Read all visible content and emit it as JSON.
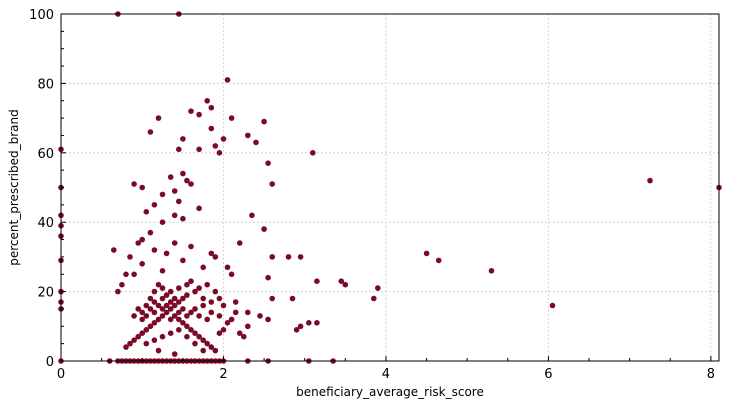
{
  "chart_data": {
    "type": "scatter",
    "title": "",
    "xlabel": "beneficiary_average_risk_score",
    "ylabel": "percent_prescribed_brand",
    "xlim": [
      0,
      8.1
    ],
    "ylim": [
      0,
      100
    ],
    "x_ticks": [
      "0",
      "2",
      "4",
      "6",
      "8"
    ],
    "y_ticks": [
      "0",
      "20",
      "40",
      "60",
      "80",
      "100"
    ],
    "x_tick_values": [
      0,
      2,
      4,
      6,
      8
    ],
    "y_tick_values": [
      0,
      20,
      40,
      60,
      80,
      100
    ],
    "grid": true,
    "legend": "none",
    "point_color": "#7b0a26",
    "points": [
      [
        0.7,
        100
      ],
      [
        1.45,
        100
      ],
      [
        2.05,
        81
      ],
      [
        1.8,
        75
      ],
      [
        1.85,
        73
      ],
      [
        1.6,
        72
      ],
      [
        1.7,
        71
      ],
      [
        1.2,
        70
      ],
      [
        2.1,
        70
      ],
      [
        2.5,
        69
      ],
      [
        1.85,
        67
      ],
      [
        1.1,
        66
      ],
      [
        1.5,
        64
      ],
      [
        2.3,
        65
      ],
      [
        2.0,
        64
      ],
      [
        2.4,
        63
      ],
      [
        1.9,
        62
      ],
      [
        1.7,
        61
      ],
      [
        1.45,
        61
      ],
      [
        1.95,
        60
      ],
      [
        3.1,
        60
      ],
      [
        2.55,
        57
      ],
      [
        1.5,
        54
      ],
      [
        1.35,
        53
      ],
      [
        1.55,
        52
      ],
      [
        1.6,
        51
      ],
      [
        0.9,
        51
      ],
      [
        2.6,
        51
      ],
      [
        1.0,
        50
      ],
      [
        1.4,
        49
      ],
      [
        1.25,
        48
      ],
      [
        1.45,
        46
      ],
      [
        1.15,
        45
      ],
      [
        1.7,
        44
      ],
      [
        1.05,
        43
      ],
      [
        1.4,
        42
      ],
      [
        2.35,
        42
      ],
      [
        1.5,
        41
      ],
      [
        1.25,
        40
      ],
      [
        2.5,
        38
      ],
      [
        1.1,
        37
      ],
      [
        1.0,
        35
      ],
      [
        0.95,
        34
      ],
      [
        1.4,
        34
      ],
      [
        2.2,
        34
      ],
      [
        1.6,
        33
      ],
      [
        0.65,
        32
      ],
      [
        1.15,
        32
      ],
      [
        1.3,
        31
      ],
      [
        1.85,
        31
      ],
      [
        1.9,
        30
      ],
      [
        2.8,
        30
      ],
      [
        2.95,
        30
      ],
      [
        2.6,
        30
      ],
      [
        0.85,
        30
      ],
      [
        4.5,
        31
      ],
      [
        4.65,
        29
      ],
      [
        1.5,
        29
      ],
      [
        1.0,
        28
      ],
      [
        1.75,
        27
      ],
      [
        2.05,
        27
      ],
      [
        1.25,
        26
      ],
      [
        5.3,
        26
      ],
      [
        0.8,
        25
      ],
      [
        0.9,
        25
      ],
      [
        2.1,
        25
      ],
      [
        2.55,
        24
      ],
      [
        3.45,
        23
      ],
      [
        3.5,
        22
      ],
      [
        3.15,
        23
      ],
      [
        3.9,
        21
      ],
      [
        3.85,
        18
      ],
      [
        2.85,
        18
      ],
      [
        2.6,
        18
      ],
      [
        6.05,
        16
      ],
      [
        7.25,
        52
      ],
      [
        8.1,
        50
      ],
      [
        3.15,
        11
      ],
      [
        3.05,
        11
      ],
      [
        2.9,
        9
      ],
      [
        2.95,
        10
      ],
      [
        2.55,
        12
      ],
      [
        2.45,
        13
      ],
      [
        2.3,
        14
      ],
      [
        2.0,
        16
      ],
      [
        2.15,
        17
      ],
      [
        1.95,
        18
      ],
      [
        1.9,
        20
      ],
      [
        1.8,
        22
      ],
      [
        1.7,
        21
      ],
      [
        1.6,
        23
      ],
      [
        1.55,
        19
      ],
      [
        1.5,
        18
      ],
      [
        1.45,
        17
      ],
      [
        1.4,
        16
      ],
      [
        1.35,
        15
      ],
      [
        1.3,
        14
      ],
      [
        1.25,
        13
      ],
      [
        1.2,
        12
      ],
      [
        1.15,
        11
      ],
      [
        1.1,
        10
      ],
      [
        1.05,
        9
      ],
      [
        1.0,
        8
      ],
      [
        0.95,
        7
      ],
      [
        0.9,
        6
      ],
      [
        0.85,
        5
      ],
      [
        0.8,
        4
      ],
      [
        1.0,
        14
      ],
      [
        1.05,
        16
      ],
      [
        1.1,
        18
      ],
      [
        1.15,
        20
      ],
      [
        1.2,
        22
      ],
      [
        1.25,
        21
      ],
      [
        1.3,
        19
      ],
      [
        1.35,
        17
      ],
      [
        1.4,
        13
      ],
      [
        1.45,
        12
      ],
      [
        1.5,
        11
      ],
      [
        1.55,
        10
      ],
      [
        1.6,
        9
      ],
      [
        1.65,
        8
      ],
      [
        1.7,
        7
      ],
      [
        1.75,
        6
      ],
      [
        1.8,
        5
      ],
      [
        1.85,
        4
      ],
      [
        1.9,
        3
      ],
      [
        1.95,
        8
      ],
      [
        2.0,
        9
      ],
      [
        2.05,
        11
      ],
      [
        2.1,
        12
      ],
      [
        2.15,
        14
      ],
      [
        1.2,
        16
      ],
      [
        1.3,
        16
      ],
      [
        1.4,
        18
      ],
      [
        1.5,
        15
      ],
      [
        1.6,
        14
      ],
      [
        1.7,
        13
      ],
      [
        1.8,
        12
      ],
      [
        1.1,
        15
      ],
      [
        1.0,
        12
      ],
      [
        0.9,
        13
      ],
      [
        0.95,
        15
      ],
      [
        1.15,
        14
      ],
      [
        1.25,
        15
      ],
      [
        1.35,
        12
      ],
      [
        1.45,
        14
      ],
      [
        1.55,
        13
      ],
      [
        1.65,
        15
      ],
      [
        1.75,
        16
      ],
      [
        1.85,
        14
      ],
      [
        1.95,
        13
      ],
      [
        1.05,
        13
      ],
      [
        1.15,
        17
      ],
      [
        1.25,
        18
      ],
      [
        1.35,
        20
      ],
      [
        1.45,
        21
      ],
      [
        1.55,
        22
      ],
      [
        1.65,
        20
      ],
      [
        1.75,
        18
      ],
      [
        1.85,
        17
      ],
      [
        0.75,
        22
      ],
      [
        0.7,
        20
      ],
      [
        1.05,
        5
      ],
      [
        1.15,
        6
      ],
      [
        1.25,
        7
      ],
      [
        1.35,
        8
      ],
      [
        1.45,
        9
      ],
      [
        1.55,
        7
      ],
      [
        1.65,
        5
      ],
      [
        1.75,
        3
      ],
      [
        1.4,
        2
      ],
      [
        1.2,
        3
      ],
      [
        2.2,
        8
      ],
      [
        2.25,
        7
      ],
      [
        2.3,
        10
      ],
      [
        0.6,
        0
      ],
      [
        0.7,
        0
      ],
      [
        0.75,
        0
      ],
      [
        0.8,
        0
      ],
      [
        0.85,
        0
      ],
      [
        0.9,
        0
      ],
      [
        0.95,
        0
      ],
      [
        1.0,
        0
      ],
      [
        1.05,
        0
      ],
      [
        1.1,
        0
      ],
      [
        1.15,
        0
      ],
      [
        1.2,
        0
      ],
      [
        1.25,
        0
      ],
      [
        1.3,
        0
      ],
      [
        1.35,
        0
      ],
      [
        1.4,
        0
      ],
      [
        1.45,
        0
      ],
      [
        1.5,
        0
      ],
      [
        1.55,
        0
      ],
      [
        1.6,
        0
      ],
      [
        1.65,
        0
      ],
      [
        1.7,
        0
      ],
      [
        1.75,
        0
      ],
      [
        1.8,
        0
      ],
      [
        1.85,
        0
      ],
      [
        1.9,
        0
      ],
      [
        1.95,
        0
      ],
      [
        2.0,
        0
      ],
      [
        2.3,
        0
      ],
      [
        2.55,
        0
      ],
      [
        3.05,
        0
      ],
      [
        3.35,
        0
      ],
      [
        0.0,
        61
      ],
      [
        0.0,
        50
      ],
      [
        0.0,
        42
      ],
      [
        0.0,
        39
      ],
      [
        0.0,
        36
      ],
      [
        0.0,
        29
      ],
      [
        0.0,
        20
      ],
      [
        0.0,
        17
      ],
      [
        0.0,
        15
      ],
      [
        0.0,
        0
      ]
    ]
  }
}
